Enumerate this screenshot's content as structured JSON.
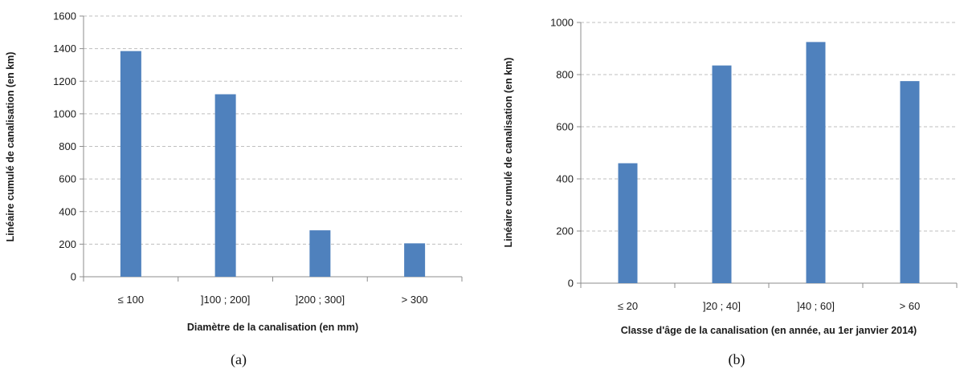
{
  "chart_data": [
    {
      "type": "bar",
      "caption": "(a)",
      "categories": [
        "≤ 100",
        "]100 ; 200]",
        "]200 ; 300]",
        "> 300"
      ],
      "values": [
        1385,
        1120,
        285,
        205
      ],
      "xlabel": "Diamètre de la canalisation  (en mm)",
      "ylabel": "Linéaire cumulé de canalisation  (en km)",
      "ylim": [
        0,
        1600
      ],
      "yticks": [
        0,
        200,
        400,
        600,
        800,
        1000,
        1200,
        1400,
        1600
      ],
      "grid": true,
      "bar_color": "#4f81bd"
    },
    {
      "type": "bar",
      "caption": "(b)",
      "categories": [
        "≤ 20",
        "]20 ; 40]",
        "]40 ; 60]",
        "> 60"
      ],
      "values": [
        460,
        835,
        925,
        775
      ],
      "xlabel": "Classe d'âge de la canalisation  (en année, au 1er janvier 2014)",
      "ylabel": "Linéaire cumulé de canalisation  (en km)",
      "ylim": [
        0,
        1000
      ],
      "yticks": [
        0,
        200,
        400,
        600,
        800,
        1000
      ],
      "grid": true,
      "bar_color": "#4f81bd"
    }
  ]
}
